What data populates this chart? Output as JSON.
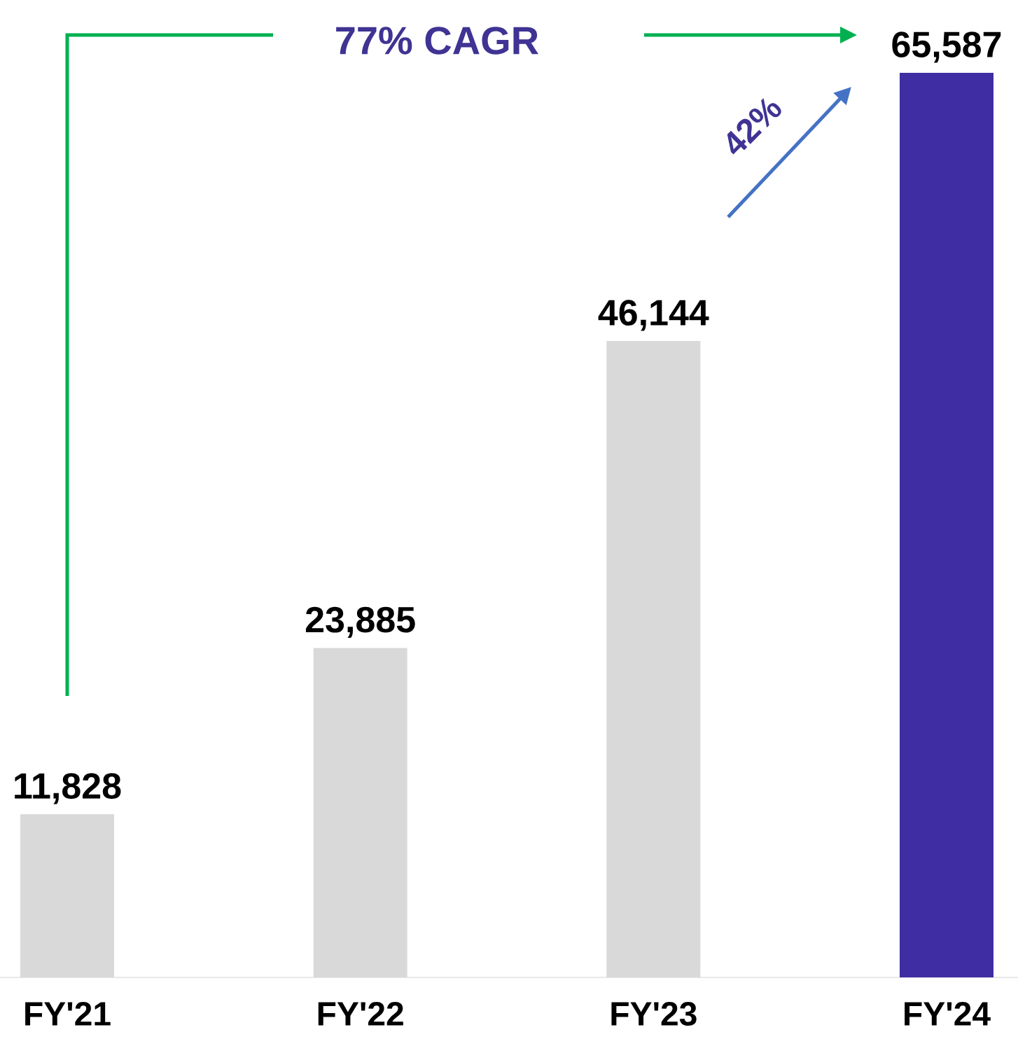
{
  "chart_data": {
    "type": "bar",
    "categories": [
      "FY'21",
      "FY'22",
      "FY'23",
      "FY'24"
    ],
    "values": [
      11828,
      23885,
      46144,
      65587
    ],
    "colors": [
      "#d9d9d9",
      "#d9d9d9",
      "#d9d9d9",
      "#3f2ea3"
    ],
    "value_labels": [
      "11,828",
      "23,885",
      "46,144",
      "65,587"
    ],
    "annotations": [
      "77% CAGR",
      "42%"
    ]
  }
}
